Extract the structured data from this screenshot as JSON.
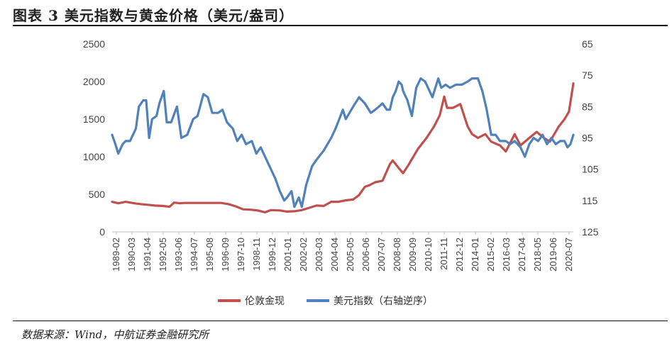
{
  "header": {
    "title": "图表 3 美元指数与黄金价格（美元/盎司）"
  },
  "footer": {
    "source": "数据来源：Wind，中航证券金融研究所"
  },
  "chart_data": {
    "type": "line",
    "left_axis": {
      "ylim": [
        0,
        2500
      ],
      "ticks": [
        "0",
        "500",
        "1000",
        "1500",
        "2000",
        "2500"
      ]
    },
    "right_axis": {
      "ylim": [
        65,
        125
      ],
      "inverted": true,
      "ticks": [
        "65",
        "75",
        "85",
        "95",
        "105",
        "115",
        "125"
      ]
    },
    "x_ticks": [
      "1989-02",
      "1990-03",
      "1991-04",
      "1992-05",
      "1993-06",
      "1994-07",
      "1995-08",
      "1996-09",
      "1997-10",
      "1998-11",
      "1999-12",
      "2001-01",
      "2002-02",
      "2003-03",
      "2004-04",
      "2005-05",
      "2006-06",
      "2007-07",
      "2008-08",
      "2009-09",
      "2010-10",
      "2011-11",
      "2012-12",
      "2014-01",
      "2015-02",
      "2016-03",
      "2017-04",
      "2018-05",
      "2019-06",
      "2020-07"
    ],
    "x_range": [
      1989.08,
      2020.5
    ],
    "legend": {
      "position": "bottom"
    },
    "series": [
      {
        "name": "伦敦金现",
        "axis": "left",
        "color": "#C0504D",
        "x": [
          1989.08,
          1989.5,
          1990.0,
          1990.6,
          1991.0,
          1991.5,
          1992.0,
          1992.5,
          1993.0,
          1993.3,
          1993.7,
          1994.0,
          1995.0,
          1996.0,
          1996.5,
          1997.0,
          1997.5,
          1998.0,
          1998.5,
          1999.0,
          1999.5,
          1999.9,
          2000.5,
          2001.0,
          2001.5,
          2002.0,
          2002.5,
          2003.0,
          2003.5,
          2004.0,
          2004.5,
          2005.0,
          2005.5,
          2005.9,
          2006.3,
          2006.6,
          2007.0,
          2007.5,
          2008.0,
          2008.2,
          2008.6,
          2008.9,
          2009.3,
          2009.9,
          2010.5,
          2011.0,
          2011.4,
          2011.7,
          2011.9,
          2012.3,
          2012.8,
          2013.3,
          2013.6,
          2014.0,
          2014.5,
          2014.9,
          2015.5,
          2015.9,
          2016.5,
          2016.9,
          2017.5,
          2018.0,
          2018.5,
          2018.9,
          2019.5,
          2019.9,
          2020.2,
          2020.5
        ],
        "values": [
          400,
          380,
          400,
          380,
          370,
          360,
          350,
          345,
          335,
          390,
          380,
          385,
          385,
          385,
          385,
          370,
          340,
          300,
          295,
          285,
          260,
          290,
          285,
          270,
          275,
          290,
          320,
          350,
          345,
          400,
          400,
          420,
          430,
          490,
          600,
          620,
          660,
          680,
          900,
          950,
          850,
          780,
          900,
          1100,
          1250,
          1400,
          1550,
          1800,
          1650,
          1650,
          1700,
          1400,
          1300,
          1250,
          1300,
          1200,
          1150,
          1070,
          1300,
          1150,
          1250,
          1330,
          1250,
          1200,
          1400,
          1500,
          1600,
          1975
        ]
      },
      {
        "name": "美元指数（右轴逆序）",
        "axis": "right",
        "color": "#4F81BD",
        "x": [
          1989.08,
          1989.3,
          1989.5,
          1989.8,
          1990.0,
          1990.3,
          1990.7,
          1990.9,
          1991.2,
          1991.4,
          1991.6,
          1991.8,
          1992.1,
          1992.3,
          1992.6,
          1992.8,
          1993.1,
          1993.5,
          1993.8,
          1994.2,
          1994.6,
          1994.9,
          1995.3,
          1995.6,
          1995.9,
          1996.3,
          1996.6,
          1996.9,
          1997.3,
          1997.6,
          1997.9,
          1998.2,
          1998.6,
          1998.9,
          1999.2,
          1999.6,
          1999.9,
          2000.2,
          2000.5,
          2000.8,
          2001.0,
          2001.3,
          2001.5,
          2001.8,
          2002.0,
          2002.3,
          2002.7,
          2003.0,
          2003.5,
          2004.0,
          2004.3,
          2004.8,
          2005.0,
          2005.5,
          2005.9,
          2006.3,
          2006.7,
          2007.0,
          2007.5,
          2007.8,
          2008.0,
          2008.2,
          2008.4,
          2008.6,
          2008.8,
          2008.9,
          2009.2,
          2009.5,
          2009.8,
          2010.1,
          2010.4,
          2010.7,
          2010.9,
          2011.1,
          2011.3,
          2011.5,
          2011.8,
          2012.1,
          2012.5,
          2012.9,
          2013.3,
          2013.6,
          2014.0,
          2014.3,
          2014.6,
          2014.9,
          2015.2,
          2015.5,
          2015.9,
          2016.2,
          2016.5,
          2016.9,
          2017.2,
          2017.5,
          2017.8,
          2018.1,
          2018.4,
          2018.7,
          2019.0,
          2019.3,
          2019.6,
          2019.9,
          2020.1,
          2020.3,
          2020.5
        ],
        "values": [
          94,
          97,
          100,
          97,
          96,
          96,
          92,
          85,
          83,
          83,
          95,
          89,
          88,
          84,
          80,
          90,
          90,
          85,
          95,
          94,
          89,
          88,
          81,
          82,
          87,
          87,
          86,
          90,
          92,
          96,
          94,
          97,
          96,
          100,
          98,
          102,
          105,
          108,
          112,
          115,
          114,
          112,
          117,
          114,
          117,
          110,
          104,
          102,
          99,
          95,
          92,
          86,
          89,
          85,
          82,
          84,
          87,
          86,
          84,
          86,
          86,
          82,
          80,
          77,
          78,
          80,
          83,
          88,
          79,
          76,
          77,
          80,
          82,
          79,
          76,
          79,
          78,
          79,
          78,
          78,
          77,
          76,
          76,
          80,
          86,
          94,
          94,
          96,
          96,
          97,
          96,
          98,
          101,
          97,
          95,
          96,
          94,
          97,
          95,
          97,
          96,
          96,
          98,
          97,
          94
        ]
      }
    ]
  }
}
